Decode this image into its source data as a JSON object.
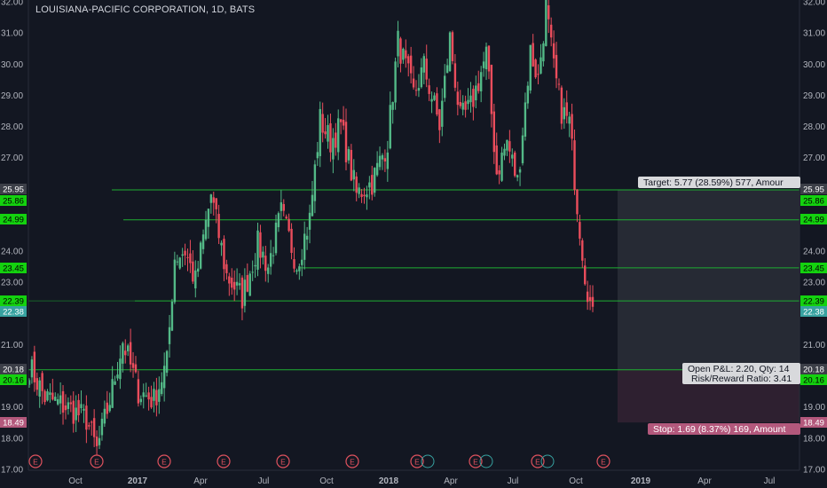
{
  "header": {
    "title": "LOUISIANA-PACIFIC CORPORATION, 1D, BATS"
  },
  "colors": {
    "background": "#131722",
    "up": "#53b987",
    "down": "#eb4d5c",
    "level_line": "#1fae32",
    "level_badge": "#14d20f",
    "target_zone": "#262a34",
    "stop_zone": "#2e2030",
    "stop_badge": "#b3587c",
    "entry_badge": "#3c3f48",
    "price_badge": "#37a2a0"
  },
  "chart_data": {
    "type": "candlestick",
    "y_axis": {
      "range": [
        16.8,
        32.05
      ],
      "ticks": [
        "17.00",
        "18.00",
        "19.00",
        "20.00",
        "21.00",
        "22.00",
        "23.00",
        "24.00",
        "25.00",
        "26.00",
        "27.00",
        "28.00",
        "29.00",
        "30.00",
        "31.00",
        "32.00"
      ],
      "position": "both"
    },
    "x_axis": {
      "labels": [
        "Oct",
        "2017",
        "Apr",
        "Jul",
        "Oct",
        "2018",
        "Apr",
        "Jul",
        "Oct",
        "2019",
        "Apr",
        "Jul"
      ],
      "bold_labels": [
        "2017",
        "2018",
        "2019"
      ]
    },
    "series_anchors": [
      [
        0,
        20.3
      ],
      [
        6,
        19.3
      ],
      [
        14,
        19.0
      ],
      [
        22,
        18.6
      ],
      [
        26,
        17.6
      ],
      [
        31,
        19.2
      ],
      [
        36,
        21.1
      ],
      [
        42,
        19.5
      ],
      [
        48,
        19.2
      ],
      [
        53,
        20.4
      ],
      [
        56,
        23.8
      ],
      [
        60,
        24.0
      ],
      [
        64,
        23.0
      ],
      [
        70,
        25.8
      ],
      [
        76,
        23.2
      ],
      [
        82,
        22.5
      ],
      [
        88,
        24.2
      ],
      [
        92,
        23.5
      ],
      [
        97,
        25.2
      ],
      [
        103,
        23.6
      ],
      [
        108,
        25.0
      ],
      [
        112,
        28.2
      ],
      [
        116,
        27.5
      ],
      [
        120,
        28.0
      ],
      [
        126,
        25.8
      ],
      [
        132,
        26.2
      ],
      [
        138,
        27.5
      ],
      [
        142,
        30.7
      ],
      [
        148,
        29.0
      ],
      [
        152,
        29.9
      ],
      [
        158,
        28.0
      ],
      [
        162,
        30.8
      ],
      [
        166,
        28.2
      ],
      [
        170,
        28.6
      ],
      [
        176,
        30.3
      ],
      [
        180,
        26.5
      ],
      [
        184,
        27.5
      ],
      [
        188,
        26.2
      ],
      [
        193,
        30.4
      ],
      [
        196,
        29.5
      ],
      [
        199,
        31.8
      ],
      [
        202,
        29.8
      ],
      [
        205,
        28.5
      ],
      [
        208,
        28.1
      ],
      [
        211,
        25.5
      ],
      [
        214,
        23.3
      ],
      [
        217,
        21.8
      ]
    ],
    "price_levels": [
      "25.95",
      "25.86",
      "24.99",
      "23.45",
      "22.39",
      "22.38",
      "20.18",
      "20.16",
      "18.49"
    ],
    "position_tool": {
      "entry": 20.18,
      "target_price": 25.95,
      "stop_price": 18.49,
      "target_label": "Target: 5.77 (28.59%) 577, Amour",
      "stop_label": "Stop: 1.69 (8.37%) 169, Amount",
      "pnl_label": "Open P&L: 2.20, Qty: 14",
      "rr_label": "Risk/Reward Ratio: 3.41"
    },
    "earnings_markers": {
      "label": "E",
      "count": 10
    },
    "grid": false
  }
}
